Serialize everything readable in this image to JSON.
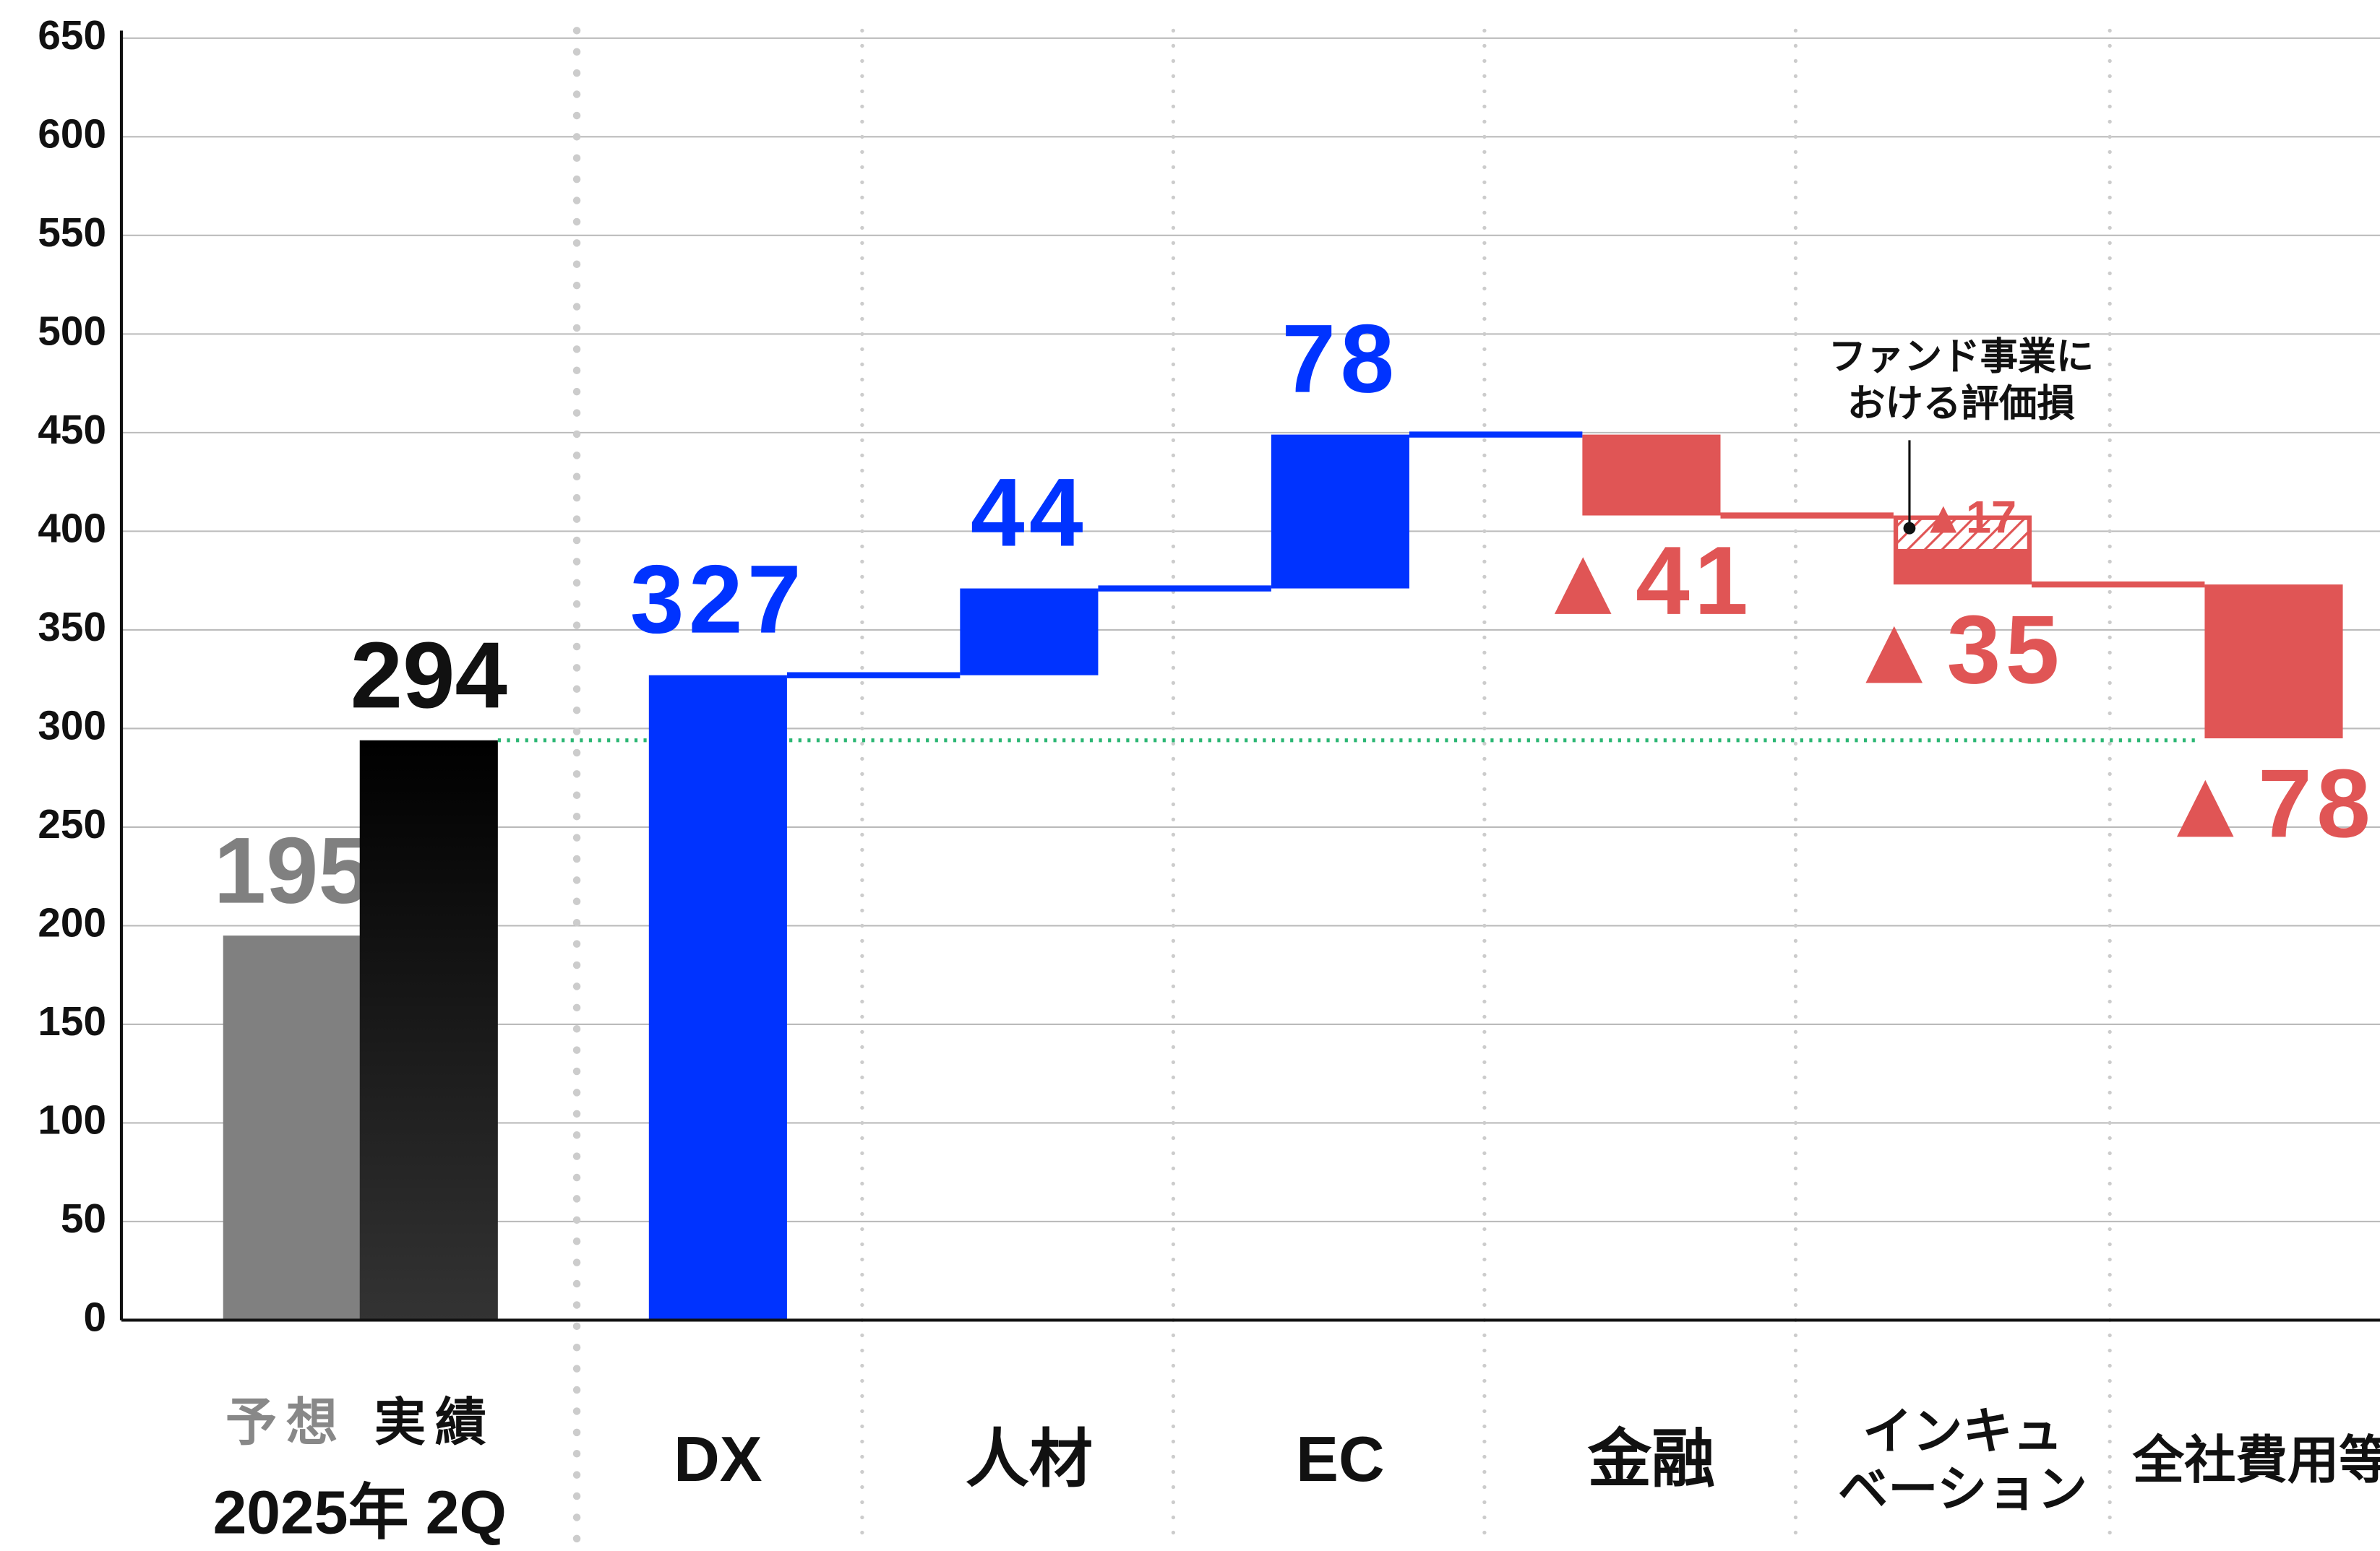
{
  "chart_data": {
    "type": "waterfall",
    "baseline": {
      "label": "2025年 2Q",
      "categories": [
        "予想",
        "実績"
      ],
      "values": [
        195,
        294
      ],
      "colors": [
        "#808080",
        "#111111"
      ]
    },
    "categories": [
      "DX",
      "人材",
      "EC",
      "金融",
      "インキュ\nベーション",
      "全社費用等"
    ],
    "values": [
      327,
      44,
      78,
      -41,
      -35,
      -78
    ],
    "value_labels": [
      "327",
      "44",
      "78",
      "▲41",
      "▲35",
      "▲78"
    ],
    "colors": {
      "increase": "#0033ff",
      "decrease": "#e05555",
      "reference": "#2bb673"
    },
    "annotation": {
      "text": "ファンド事業に\nおける評価損",
      "value": -17,
      "value_label": "▲17"
    },
    "ylim": [
      0,
      650
    ],
    "yticks": [
      0,
      50,
      100,
      150,
      200,
      250,
      300,
      350,
      400,
      450,
      500,
      550,
      600,
      650
    ],
    "grid": true
  }
}
